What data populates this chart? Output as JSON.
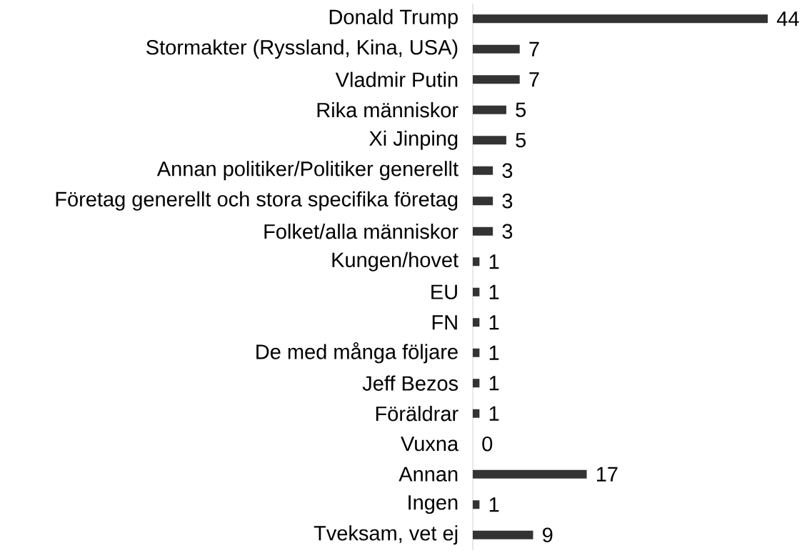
{
  "chart_data": {
    "type": "bar",
    "orientation": "horizontal",
    "categories": [
      "Donald Trump",
      "Stormakter (Ryssland, Kina, USA)",
      "Vladmir Putin",
      "Rika människor",
      "Xi Jinping",
      "Annan politiker/Politiker generellt",
      "Företag generellt och stora specifika företag",
      "Folket/alla människor",
      "Kungen/hovet",
      "EU",
      "FN",
      "De med många följare",
      "Jeff Bezos",
      "Föräldrar",
      "Vuxna",
      "Annan",
      "Ingen",
      "Tveksam, vet ej"
    ],
    "values": [
      44,
      7,
      7,
      5,
      5,
      3,
      3,
      3,
      1,
      1,
      1,
      1,
      1,
      1,
      0,
      17,
      1,
      9
    ],
    "color": "#333333",
    "data_labels": true
  }
}
